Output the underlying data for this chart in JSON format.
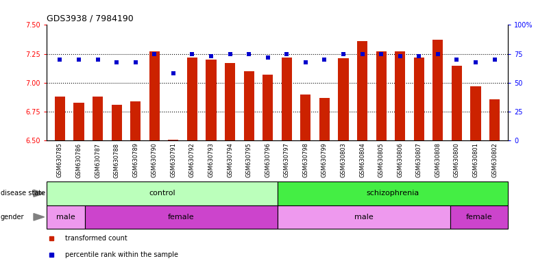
{
  "title": "GDS3938 / 7984190",
  "samples": [
    "GSM630785",
    "GSM630786",
    "GSM630787",
    "GSM630788",
    "GSM630789",
    "GSM630790",
    "GSM630791",
    "GSM630792",
    "GSM630793",
    "GSM630794",
    "GSM630795",
    "GSM630796",
    "GSM630797",
    "GSM630798",
    "GSM630799",
    "GSM630803",
    "GSM630804",
    "GSM630805",
    "GSM630806",
    "GSM630807",
    "GSM630808",
    "GSM630800",
    "GSM630801",
    "GSM630802"
  ],
  "bar_values": [
    6.88,
    6.83,
    6.88,
    6.81,
    6.84,
    7.27,
    6.51,
    7.22,
    7.2,
    7.17,
    7.1,
    7.07,
    7.22,
    6.9,
    6.87,
    7.21,
    7.36,
    7.27,
    7.27,
    7.22,
    7.37,
    7.15,
    6.97,
    6.86
  ],
  "percentile_values": [
    70,
    70,
    70,
    68,
    68,
    75,
    58,
    75,
    73,
    75,
    75,
    72,
    75,
    68,
    70,
    75,
    75,
    75,
    73,
    73,
    75,
    70,
    68,
    70
  ],
  "ylim_left": [
    6.5,
    7.5
  ],
  "ylim_right": [
    0,
    100
  ],
  "yticks_left": [
    6.5,
    6.75,
    7.0,
    7.25,
    7.5
  ],
  "yticks_right": [
    0,
    25,
    50,
    75,
    100
  ],
  "bar_color": "#cc2200",
  "dot_color": "#0000cc",
  "disease_state_blocks": [
    {
      "start": 0,
      "end": 12,
      "color": "#bbffbb",
      "label": "control"
    },
    {
      "start": 12,
      "end": 24,
      "color": "#44ee44",
      "label": "schizophrenia"
    }
  ],
  "gender_blocks": [
    {
      "start": 0,
      "end": 2,
      "color": "#ee99ee",
      "label": "male"
    },
    {
      "start": 2,
      "end": 12,
      "color": "#cc44cc",
      "label": "female"
    },
    {
      "start": 12,
      "end": 21,
      "color": "#ee99ee",
      "label": "male"
    },
    {
      "start": 21,
      "end": 24,
      "color": "#cc44cc",
      "label": "female"
    }
  ],
  "legend_items": [
    {
      "label": "transformed count",
      "color": "#cc2200"
    },
    {
      "label": "percentile rank within the sample",
      "color": "#0000cc"
    }
  ],
  "n_samples": 24
}
